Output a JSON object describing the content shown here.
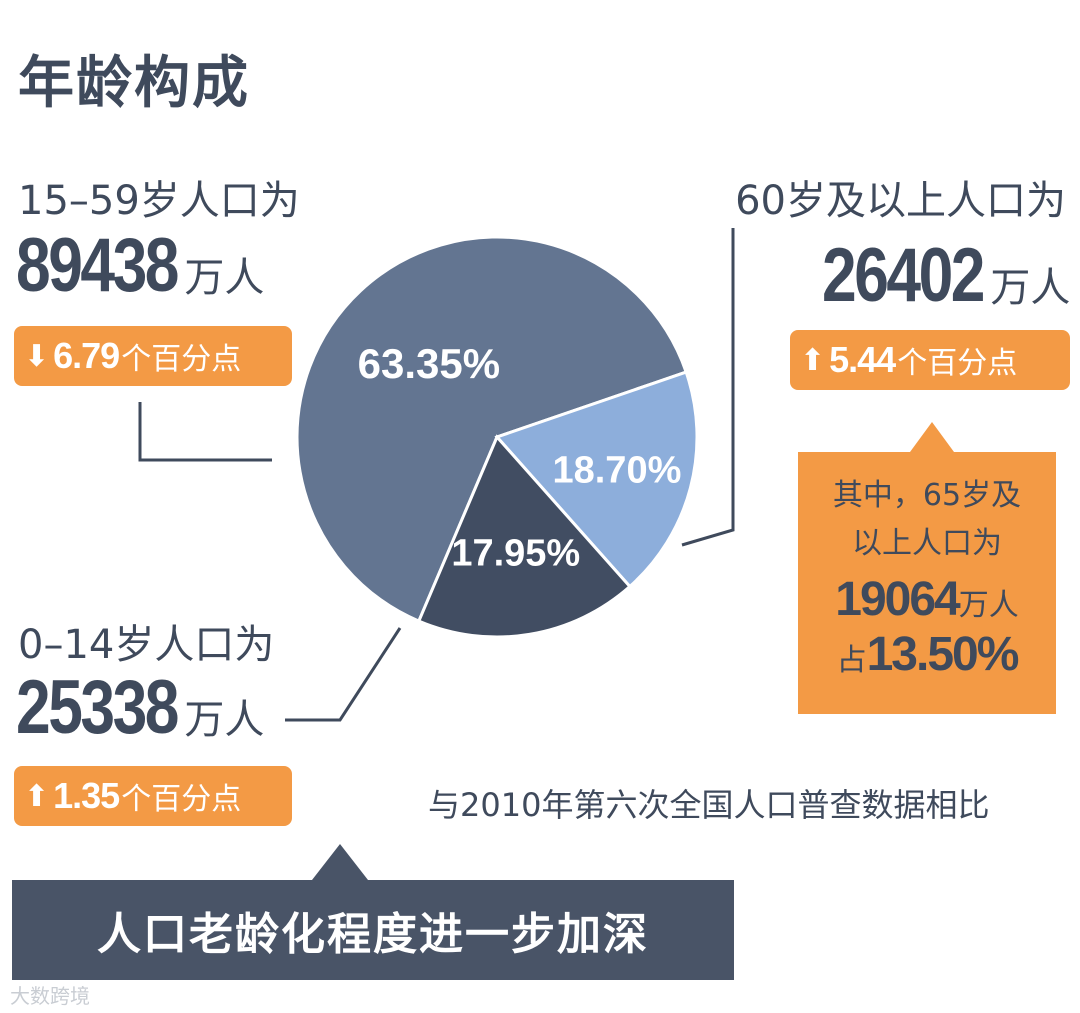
{
  "title": "年龄构成",
  "groups": {
    "working": {
      "label": "15–59岁人口为",
      "number": "89438",
      "unit": "万人",
      "change_arrow": "down",
      "change_value": "6.79",
      "change_unit": "个百分点"
    },
    "elderly": {
      "label": "60岁及以上人口为",
      "number": "26402",
      "unit": "万人",
      "change_arrow": "up",
      "change_value": "5.44",
      "change_unit": "个百分点"
    },
    "children": {
      "label": "0–14岁人口为",
      "number": "25338",
      "unit": "万人",
      "change_arrow": "up",
      "change_value": "1.35",
      "change_unit": "个百分点"
    }
  },
  "callout": {
    "line1": "其中，65岁及",
    "line2": "以上人口为",
    "number": "19064",
    "unit": "万人",
    "share_prefix": "占",
    "share_value": "13.50%"
  },
  "comparison_note": "与2010年第六次全国人口普查数据相比",
  "banner": "人口老龄化程度进一步加深",
  "watermark": "大数跨境",
  "arrows": {
    "up": "⬆",
    "down": "⬇"
  },
  "colors": {
    "working": "#637591",
    "elderly": "#8daedb",
    "children": "#414d62",
    "accent": "#f39a45",
    "text": "#3f4a5c"
  },
  "chart_data": {
    "type": "pie",
    "title": "年龄构成",
    "slices": [
      {
        "name": "15–59岁",
        "value": 63.35,
        "label": "63.35%",
        "color": "#637591"
      },
      {
        "name": "60岁及以上",
        "value": 18.7,
        "label": "18.70%",
        "color": "#8daedb"
      },
      {
        "name": "0–14岁",
        "value": 17.95,
        "label": "17.95%",
        "color": "#414d62"
      }
    ]
  }
}
